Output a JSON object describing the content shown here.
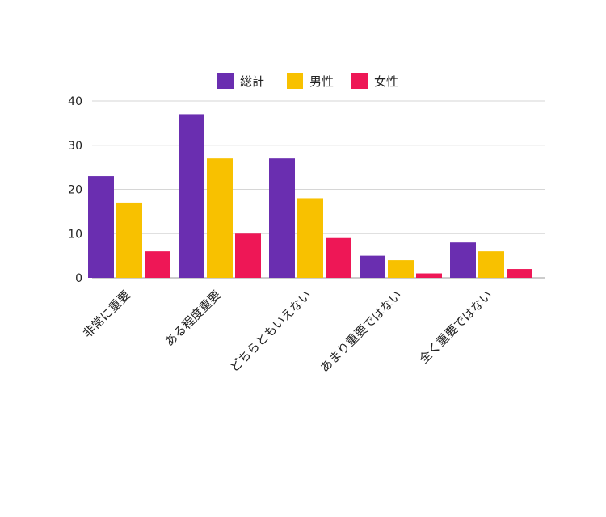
{
  "chart_data": {
    "type": "bar",
    "title": "",
    "xlabel": "",
    "ylabel": "",
    "categories": [
      "非常に重要",
      "ある程度重要",
      "どちらともいえない",
      "あまり重要ではない",
      "全く重要ではない"
    ],
    "series": [
      {
        "name": "総計",
        "color": "#6a2eb0",
        "values": [
          23,
          37,
          27,
          5,
          8
        ]
      },
      {
        "name": "男性",
        "color": "#f8c100",
        "values": [
          17,
          27,
          18,
          4,
          6
        ]
      },
      {
        "name": "女性",
        "color": "#ee1756",
        "values": [
          6,
          10,
          9,
          1,
          2
        ]
      }
    ],
    "ylim": [
      0,
      40
    ],
    "yticks": [
      0,
      10,
      20,
      30,
      40
    ],
    "grid": true,
    "legend_position": "top-center"
  }
}
